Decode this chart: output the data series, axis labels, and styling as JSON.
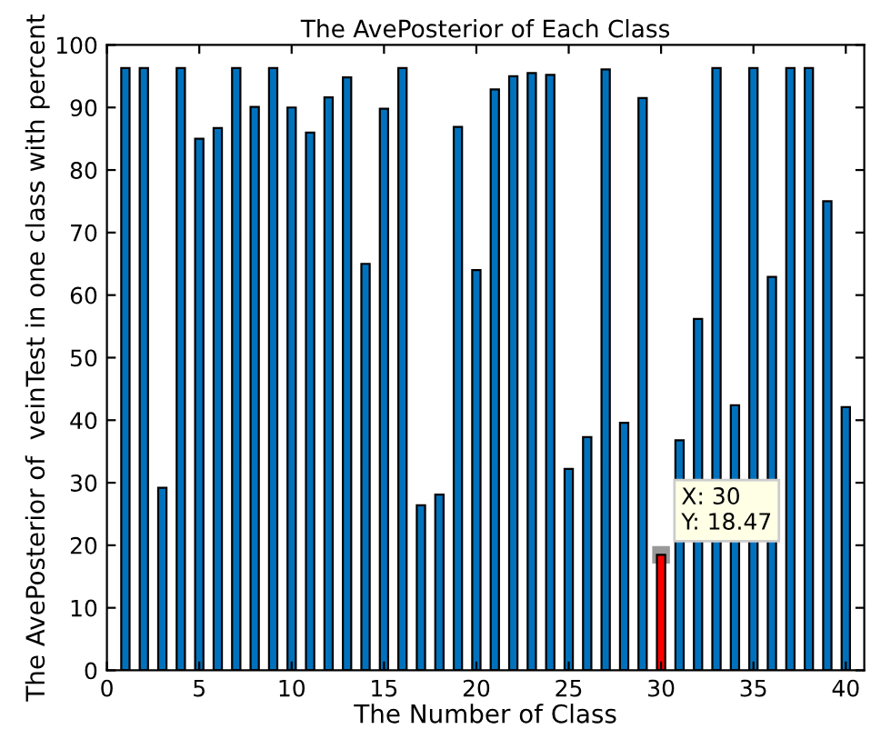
{
  "chart_data": {
    "type": "bar",
    "title": "The AvePosterior of Each Class",
    "xlabel": "The Number of Class",
    "ylabel": "The AvePosterior of  veinTest in one class with percent",
    "x": [
      1,
      2,
      3,
      4,
      5,
      6,
      7,
      8,
      9,
      10,
      11,
      12,
      13,
      14,
      15,
      16,
      17,
      18,
      19,
      20,
      21,
      22,
      23,
      24,
      25,
      26,
      27,
      28,
      29,
      30,
      31,
      32,
      33,
      34,
      35,
      36,
      37,
      38,
      39,
      40
    ],
    "values": [
      96.3,
      96.3,
      29.2,
      96.3,
      85,
      86.7,
      96.3,
      90.1,
      96.3,
      90,
      86,
      91.6,
      94.8,
      65,
      89.8,
      96.3,
      26.4,
      28.1,
      86.9,
      64,
      92.9,
      95,
      95.5,
      95.2,
      32.2,
      37.3,
      96.1,
      39.6,
      91.5,
      18.47,
      36.8,
      56.2,
      96.3,
      42.4,
      96.3,
      62.9,
      96.3,
      96.3,
      75,
      42.1
    ],
    "colors": [
      "#0072bd",
      "#0072bd",
      "#0072bd",
      "#0072bd",
      "#0072bd",
      "#0072bd",
      "#0072bd",
      "#0072bd",
      "#0072bd",
      "#0072bd",
      "#0072bd",
      "#0072bd",
      "#0072bd",
      "#0072bd",
      "#0072bd",
      "#0072bd",
      "#0072bd",
      "#0072bd",
      "#0072bd",
      "#0072bd",
      "#0072bd",
      "#0072bd",
      "#0072bd",
      "#0072bd",
      "#0072bd",
      "#0072bd",
      "#0072bd",
      "#0072bd",
      "#0072bd",
      "#ff0000",
      "#0072bd",
      "#0072bd",
      "#0072bd",
      "#0072bd",
      "#0072bd",
      "#0072bd",
      "#0072bd",
      "#0072bd",
      "#0072bd",
      "#0072bd"
    ],
    "annotations": [
      {
        "text": "X: 30\nY: 18.47",
        "x": 30,
        "y": 18.47
      }
    ],
    "xlim": [
      0,
      41
    ],
    "ylim": [
      0,
      100
    ],
    "xticks": [
      0,
      5,
      10,
      15,
      20,
      25,
      30,
      35,
      40
    ],
    "yticks": [
      0,
      10,
      20,
      30,
      40,
      50,
      60,
      70,
      80,
      90,
      100
    ],
    "grid": false
  }
}
